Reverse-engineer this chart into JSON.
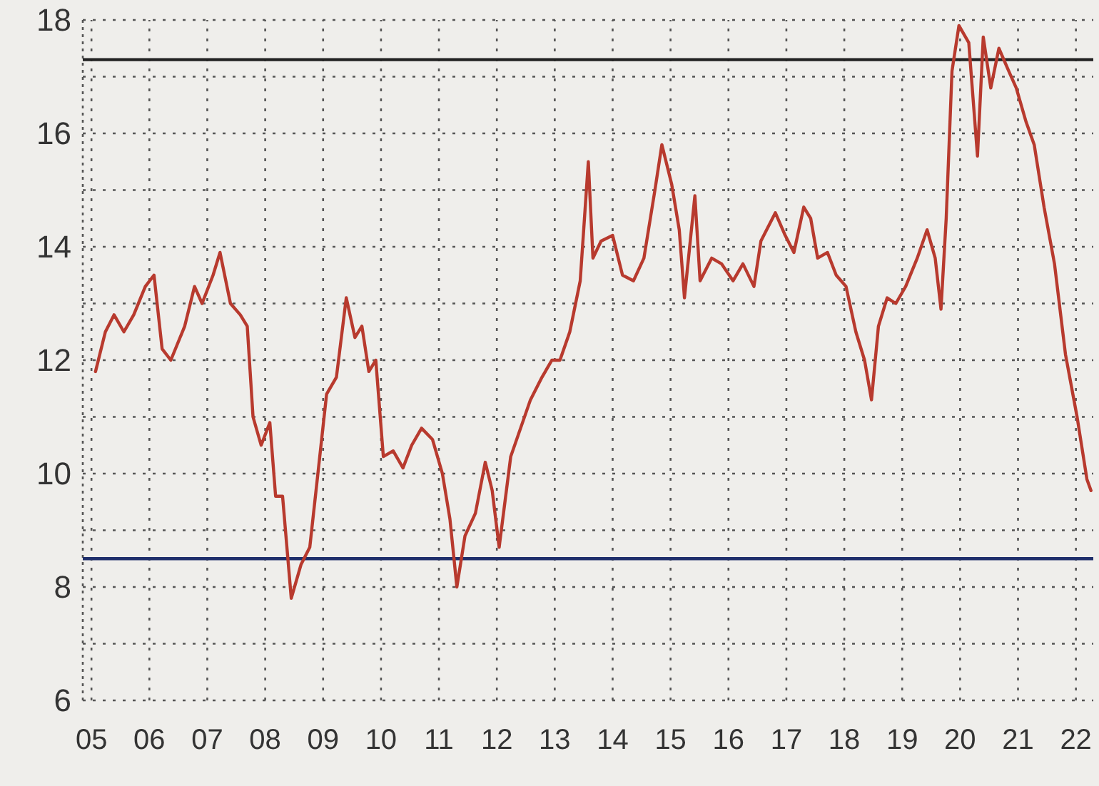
{
  "chart_data": {
    "type": "line",
    "x": [
      2005.07,
      2005.24,
      2005.39,
      2005.56,
      2005.73,
      2005.93,
      2006.08,
      2006.22,
      2006.37,
      2006.61,
      2006.78,
      2006.91,
      2007.1,
      2007.22,
      2007.4,
      2007.57,
      2007.69,
      2007.79,
      2007.93,
      2008.08,
      2008.18,
      2008.3,
      2008.45,
      2008.62,
      2008.77,
      2008.91,
      2009.06,
      2009.23,
      2009.4,
      2009.55,
      2009.67,
      2009.79,
      2009.91,
      2010.04,
      2010.21,
      2010.38,
      2010.53,
      2010.7,
      2010.89,
      2011.06,
      2011.19,
      2011.31,
      2011.45,
      2011.63,
      2011.8,
      2011.92,
      2012.04,
      2012.24,
      2012.41,
      2012.58,
      2012.78,
      2012.95,
      2013.09,
      2013.26,
      2013.44,
      2013.58,
      2013.66,
      2013.8,
      2014.0,
      2014.17,
      2014.36,
      2014.54,
      2014.73,
      2014.85,
      2015.02,
      2015.15,
      2015.24,
      2015.42,
      2015.51,
      2015.71,
      2015.88,
      2016.08,
      2016.25,
      2016.44,
      2016.56,
      2016.81,
      2016.98,
      2017.13,
      2017.3,
      2017.42,
      2017.54,
      2017.71,
      2017.86,
      2018.03,
      2018.2,
      2018.35,
      2018.47,
      2018.59,
      2018.74,
      2018.89,
      2019.06,
      2019.26,
      2019.43,
      2019.57,
      2019.67,
      2019.76,
      2019.86,
      2019.98,
      2020.15,
      2020.3,
      2020.4,
      2020.53,
      2020.67,
      2020.84,
      2020.97,
      2021.14,
      2021.28,
      2021.45,
      2021.63,
      2021.82,
      2022.02,
      2022.19,
      2022.26
    ],
    "series": [
      {
        "color": "#b83a2e",
        "values": [
          11.8,
          12.5,
          12.8,
          12.5,
          12.8,
          13.3,
          13.5,
          12.2,
          12,
          12.6,
          13.3,
          13,
          13.5,
          13.9,
          13,
          12.8,
          12.6,
          11,
          10.5,
          10.9,
          9.6,
          9.6,
          7.8,
          8.4,
          8.7,
          10,
          11.4,
          11.7,
          13.1,
          12.4,
          12.6,
          11.8,
          12,
          10.3,
          10.4,
          10.1,
          10.5,
          10.8,
          10.6,
          10,
          9.2,
          8,
          8.9,
          9.3,
          10.2,
          9.7,
          8.7,
          10.3,
          10.8,
          11.3,
          11.7,
          12,
          12,
          12.5,
          13.4,
          15.5,
          13.8,
          14.1,
          14.2,
          13.5,
          13.4,
          13.8,
          15,
          15.8,
          15.1,
          14.3,
          13.1,
          14.9,
          13.4,
          13.8,
          13.7,
          13.4,
          13.7,
          13.3,
          14.1,
          14.6,
          14.2,
          13.9,
          14.7,
          14.5,
          13.8,
          13.9,
          13.5,
          13.3,
          12.5,
          12,
          11.3,
          12.6,
          13.1,
          13,
          13.3,
          13.8,
          14.3,
          13.8,
          12.9,
          14.5,
          17.1,
          17.9,
          17.6,
          15.6,
          17.7,
          16.8,
          17.5,
          17.1,
          16.8,
          16.2,
          15.8,
          14.7,
          13.7,
          12.1,
          11,
          9.9,
          9.7
        ]
      }
    ],
    "xlim": [
      2004.85,
      2022.3
    ],
    "xticks": [
      {
        "value": 2005,
        "label": "05"
      },
      {
        "value": 2006,
        "label": "06"
      },
      {
        "value": 2007,
        "label": "07"
      },
      {
        "value": 2008,
        "label": "08"
      },
      {
        "value": 2009,
        "label": "09"
      },
      {
        "value": 2010,
        "label": "10"
      },
      {
        "value": 2011,
        "label": "11"
      },
      {
        "value": 2012,
        "label": "12"
      },
      {
        "value": 2013,
        "label": "13"
      },
      {
        "value": 2014,
        "label": "14"
      },
      {
        "value": 2015,
        "label": "15"
      },
      {
        "value": 2016,
        "label": "16"
      },
      {
        "value": 2017,
        "label": "17"
      },
      {
        "value": 2018,
        "label": "18"
      },
      {
        "value": 2019,
        "label": "19"
      },
      {
        "value": 2020,
        "label": "20"
      },
      {
        "value": 2021,
        "label": "21"
      },
      {
        "value": 2022,
        "label": "22"
      }
    ],
    "ylim": [
      6,
      18
    ],
    "yticks": [
      6,
      {
        "value": 7,
        "label": null
      },
      8,
      {
        "value": 9,
        "label": null
      },
      10,
      {
        "value": 11,
        "label": null
      },
      12,
      {
        "value": 13,
        "label": null
      },
      14,
      {
        "value": 15,
        "label": null
      },
      16,
      {
        "value": 17,
        "label": null
      },
      18
    ],
    "grid": true,
    "line_style": "solid",
    "ref_lines": [
      {
        "axis": "y",
        "value": 17.3,
        "color": "#222222"
      },
      {
        "axis": "y",
        "value": 8.5,
        "color": "#1f2f6b"
      }
    ]
  }
}
